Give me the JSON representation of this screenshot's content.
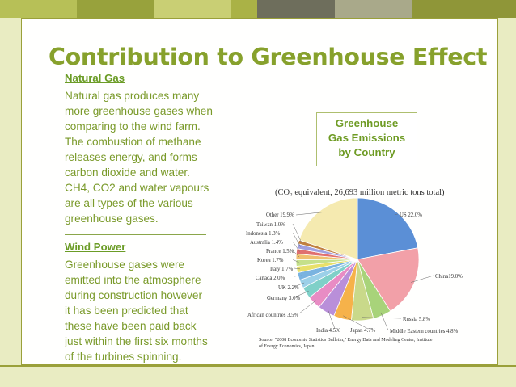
{
  "slide": {
    "title": "Contribution to Greenhouse Effect",
    "natural_gas": {
      "heading": "Natural Gas",
      "lines": [
        "Natural gas produces many",
        "more greenhouse gases when",
        "comparing to the wind farm.",
        "The combustion of methane",
        "releases energy, and forms",
        "carbon dioxide and water.",
        "CH4, CO2 and water vapours",
        "are all types of the various",
        "greenhouse gases."
      ]
    },
    "wind_power": {
      "heading": "Wind Power",
      "lines": [
        "Greenhouse gases were",
        "emitted into the atmosphere",
        "during construction however",
        "it has been predicted that",
        "these have been paid back",
        "just within the first six months",
        "of the turbines spinning."
      ]
    },
    "caption_box": {
      "lines": [
        "Greenhouse",
        "Gas Emissions",
        "by Country"
      ]
    }
  },
  "figure": {
    "header": "(CO₂ equivalent, 26,693 million metric tons total)",
    "source_lines": [
      "Source: \"2008 Economic Statistics Bulletin,\" Energy Data and Modeling Center, Institute",
      "of Energy Economics, Japan."
    ]
  },
  "chart_data": {
    "type": "pie",
    "title": "",
    "slices": [
      {
        "label": "US 22.0%",
        "value": 22.0,
        "color": "#5b8fd6"
      },
      {
        "label": "China19.0%",
        "value": 19.0,
        "color": "#f2a0a8"
      },
      {
        "label": "Middle Eastern countries 4.8%",
        "value": 4.8,
        "color": "#a8d37a"
      },
      {
        "label": "Russia 5.8%",
        "value": 5.8,
        "color": "#c9d98a"
      },
      {
        "label": "Japan 4.7%",
        "value": 4.7,
        "color": "#f6b24a"
      },
      {
        "label": "India 4.5%",
        "value": 4.5,
        "color": "#b98fd9"
      },
      {
        "label": "African countries 3.5%",
        "value": 3.5,
        "color": "#e88cc4"
      },
      {
        "label": "Germany 3.0%",
        "value": 3.0,
        "color": "#7fd0c8"
      },
      {
        "label": "UK  2.2%",
        "value": 2.2,
        "color": "#9bd0e8"
      },
      {
        "label": "Canada 2.0%",
        "value": 2.0,
        "color": "#7ab3e0"
      },
      {
        "label": "Italy 1.7%",
        "value": 1.7,
        "color": "#e8e06a"
      },
      {
        "label": "Korea 1.7%",
        "value": 1.7,
        "color": "#c5e08a"
      },
      {
        "label": "France 1.5%",
        "value": 1.5,
        "color": "#f0c070"
      },
      {
        "label": "Australia 1.4%",
        "value": 1.4,
        "color": "#e07070"
      },
      {
        "label": "Indonesia 1.3%",
        "value": 1.3,
        "color": "#a0a0e0"
      },
      {
        "label": "Taiwan 1.0%",
        "value": 1.0,
        "color": "#c08040"
      },
      {
        "label": "Other 19.9%",
        "value": 19.9,
        "color": "#f5eab0"
      }
    ]
  },
  "colors": {
    "background": "#e9ecc2",
    "title": "#87a12c",
    "body_text": "#7a9a2a",
    "frame": "#9aa03a"
  }
}
